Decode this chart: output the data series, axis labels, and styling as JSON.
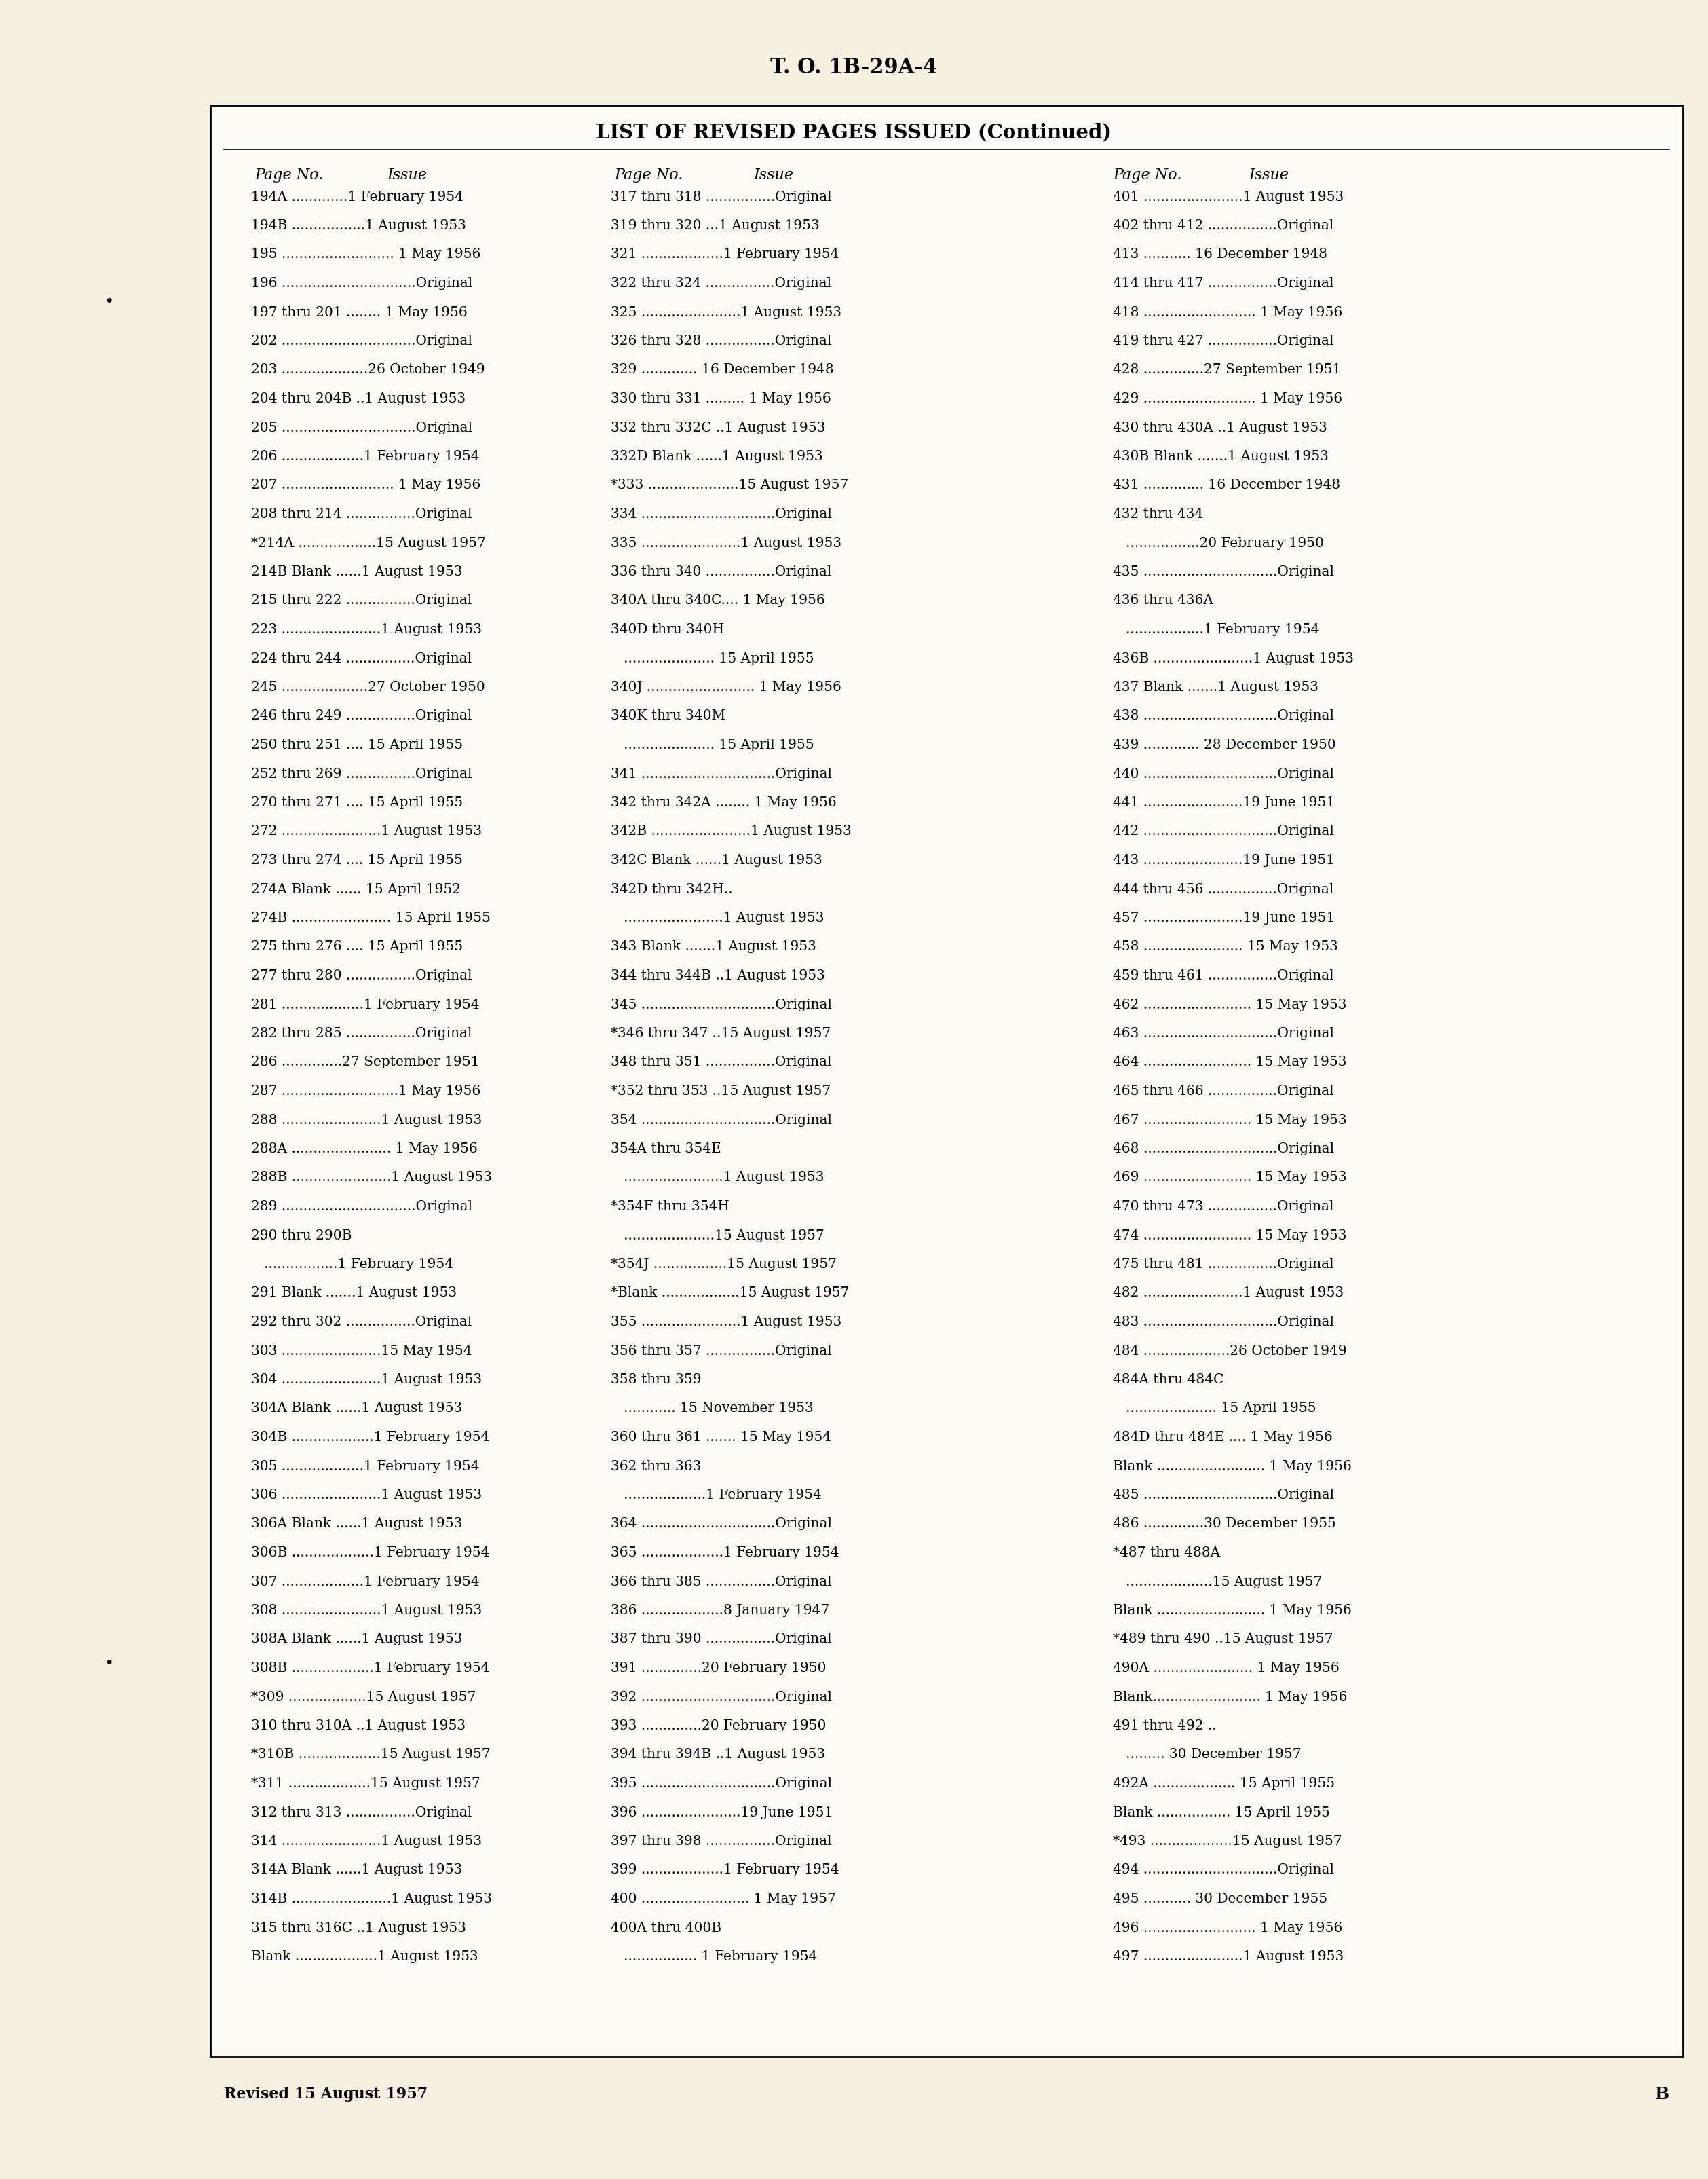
{
  "bg_color": "#f5f0e0",
  "page_bg": "#fdfcf7",
  "header_text": "T. O. 1B-29A-4",
  "title": "LIST OF REVISED PAGES ISSUED (Continued)",
  "footer_left": "Revised 15 August 1957",
  "footer_right": "B",
  "col1_lines": [
    "194A .............1 February 1954",
    "194B .................1 August 1953",
    "195 .......................... 1 May 1956",
    "196 ...............................Original",
    "197 thru 201 ........ 1 May 1956",
    "202 ...............................Original",
    "203 ....................26 October 1949",
    "204 thru 204B ..1 August 1953",
    "205 ...............................Original",
    "206 ...................1 February 1954",
    "207 .......................... 1 May 1956",
    "208 thru 214 ................Original",
    "*214A ..................15 August 1957",
    "214B Blank ......1 August 1953",
    "215 thru 222 ................Original",
    "223 .......................1 August 1953",
    "224 thru 244 ................Original",
    "245 ....................27 October 1950",
    "246 thru 249 ................Original",
    "250 thru 251 .... 15 April 1955",
    "252 thru 269 ................Original",
    "270 thru 271 .... 15 April 1955",
    "272 .......................1 August 1953",
    "273 thru 274 .... 15 April 1955",
    "274A Blank ...... 15 April 1952",
    "274B ....................... 15 April 1955",
    "275 thru 276 .... 15 April 1955",
    "277 thru 280 ................Original",
    "281 ...................1 February 1954",
    "282 thru 285 ................Original",
    "286 ..............27 September 1951",
    "287 ...........................1 May 1956",
    "288 .......................1 August 1953",
    "288A ....................... 1 May 1956",
    "288B .......................1 August 1953",
    "289 ...............................Original",
    "290 thru 290B",
    "   .................1 February 1954",
    "291 Blank .......1 August 1953",
    "292 thru 302 ................Original",
    "303 .......................15 May 1954",
    "304 .......................1 August 1953",
    "304A Blank ......1 August 1953",
    "304B ...................1 February 1954",
    "305 ...................1 February 1954",
    "306 .......................1 August 1953",
    "306A Blank ......1 August 1953",
    "306B ...................1 February 1954",
    "307 ...................1 February 1954",
    "308 .......................1 August 1953",
    "308A Blank ......1 August 1953",
    "308B ...................1 February 1954",
    "*309 ..................15 August 1957",
    "310 thru 310A ..1 August 1953",
    "*310B ...................15 August 1957",
    "*311 ...................15 August 1957",
    "312 thru 313 ................Original",
    "314 .......................1 August 1953",
    "314A Blank ......1 August 1953",
    "314B .......................1 August 1953",
    "315 thru 316C ..1 August 1953",
    "Blank ...................1 August 1953"
  ],
  "col2_lines": [
    "317 thru 318 ................Original",
    "319 thru 320 ...1 August 1953",
    "321 ...................1 February 1954",
    "322 thru 324 ................Original",
    "325 .......................1 August 1953",
    "326 thru 328 ................Original",
    "329 ............. 16 December 1948",
    "330 thru 331 ......... 1 May 1956",
    "332 thru 332C ..1 August 1953",
    "332D Blank ......1 August 1953",
    "*333 .....................15 August 1957",
    "334 ...............................Original",
    "335 .......................1 August 1953",
    "336 thru 340 ................Original",
    "340A thru 340C.... 1 May 1956",
    "340D thru 340H",
    "   ..................... 15 April 1955",
    "340J ......................... 1 May 1956",
    "340K thru 340M",
    "   ..................... 15 April 1955",
    "341 ...............................Original",
    "342 thru 342A ........ 1 May 1956",
    "342B .......................1 August 1953",
    "342C Blank ......1 August 1953",
    "342D thru 342H..",
    "   .......................1 August 1953",
    "343 Blank .......1 August 1953",
    "344 thru 344B ..1 August 1953",
    "345 ...............................Original",
    "*346 thru 347 ..15 August 1957",
    "348 thru 351 ................Original",
    "*352 thru 353 ..15 August 1957",
    "354 ...............................Original",
    "354A thru 354E",
    "   .......................1 August 1953",
    "*354F thru 354H",
    "   .....................15 August 1957",
    "*354J .................15 August 1957",
    "*Blank ..................15 August 1957",
    "355 .......................1 August 1953",
    "356 thru 357 ................Original",
    "358 thru 359",
    "   ............ 15 November 1953",
    "360 thru 361 ....... 15 May 1954",
    "362 thru 363",
    "   ...................1 February 1954",
    "364 ...............................Original",
    "365 ...................1 February 1954",
    "366 thru 385 ................Original",
    "386 ...................8 January 1947",
    "387 thru 390 ................Original",
    "391 ..............20 February 1950",
    "392 ...............................Original",
    "393 ..............20 February 1950",
    "394 thru 394B ..1 August 1953",
    "395 ...............................Original",
    "396 .......................19 June 1951",
    "397 thru 398 ................Original",
    "399 ...................1 February 1954",
    "400 ......................... 1 May 1957",
    "400A thru 400B",
    "   ................. 1 February 1954"
  ],
  "col3_lines": [
    "401 .......................1 August 1953",
    "402 thru 412 ................Original",
    "413 ........... 16 December 1948",
    "414 thru 417 ................Original",
    "418 .......................... 1 May 1956",
    "419 thru 427 ................Original",
    "428 ..............27 September 1951",
    "429 .......................... 1 May 1956",
    "430 thru 430A ..1 August 1953",
    "430B Blank .......1 August 1953",
    "431 .............. 16 December 1948",
    "432 thru 434",
    "   .................20 February 1950",
    "435 ...............................Original",
    "436 thru 436A",
    "   ..................1 February 1954",
    "436B .......................1 August 1953",
    "437 Blank .......1 August 1953",
    "438 ...............................Original",
    "439 ............. 28 December 1950",
    "440 ...............................Original",
    "441 .......................19 June 1951",
    "442 ...............................Original",
    "443 .......................19 June 1951",
    "444 thru 456 ................Original",
    "457 .......................19 June 1951",
    "458 ....................... 15 May 1953",
    "459 thru 461 ................Original",
    "462 ......................... 15 May 1953",
    "463 ...............................Original",
    "464 ......................... 15 May 1953",
    "465 thru 466 ................Original",
    "467 ......................... 15 May 1953",
    "468 ...............................Original",
    "469 ......................... 15 May 1953",
    "470 thru 473 ................Original",
    "474 ......................... 15 May 1953",
    "475 thru 481 ................Original",
    "482 .......................1 August 1953",
    "483 ...............................Original",
    "484 ....................26 October 1949",
    "484A thru 484C",
    "   ..................... 15 April 1955",
    "484D thru 484E .... 1 May 1956",
    "Blank ......................... 1 May 1956",
    "485 ...............................Original",
    "486 ..............30 December 1955",
    "*487 thru 488A",
    "   ....................15 August 1957",
    "Blank ......................... 1 May 1956",
    "*489 thru 490 ..15 August 1957",
    "490A ....................... 1 May 1956",
    "Blank......................... 1 May 1956",
    "491 thru 492 ..",
    "   ......... 30 December 1957",
    "492A ................... 15 April 1955",
    "Blank ................. 15 April 1955",
    "*493 ...................15 August 1957",
    "494 ...............................Original",
    "495 ........... 30 December 1955",
    "496 .......................... 1 May 1956",
    "497 .......................1 August 1953"
  ]
}
